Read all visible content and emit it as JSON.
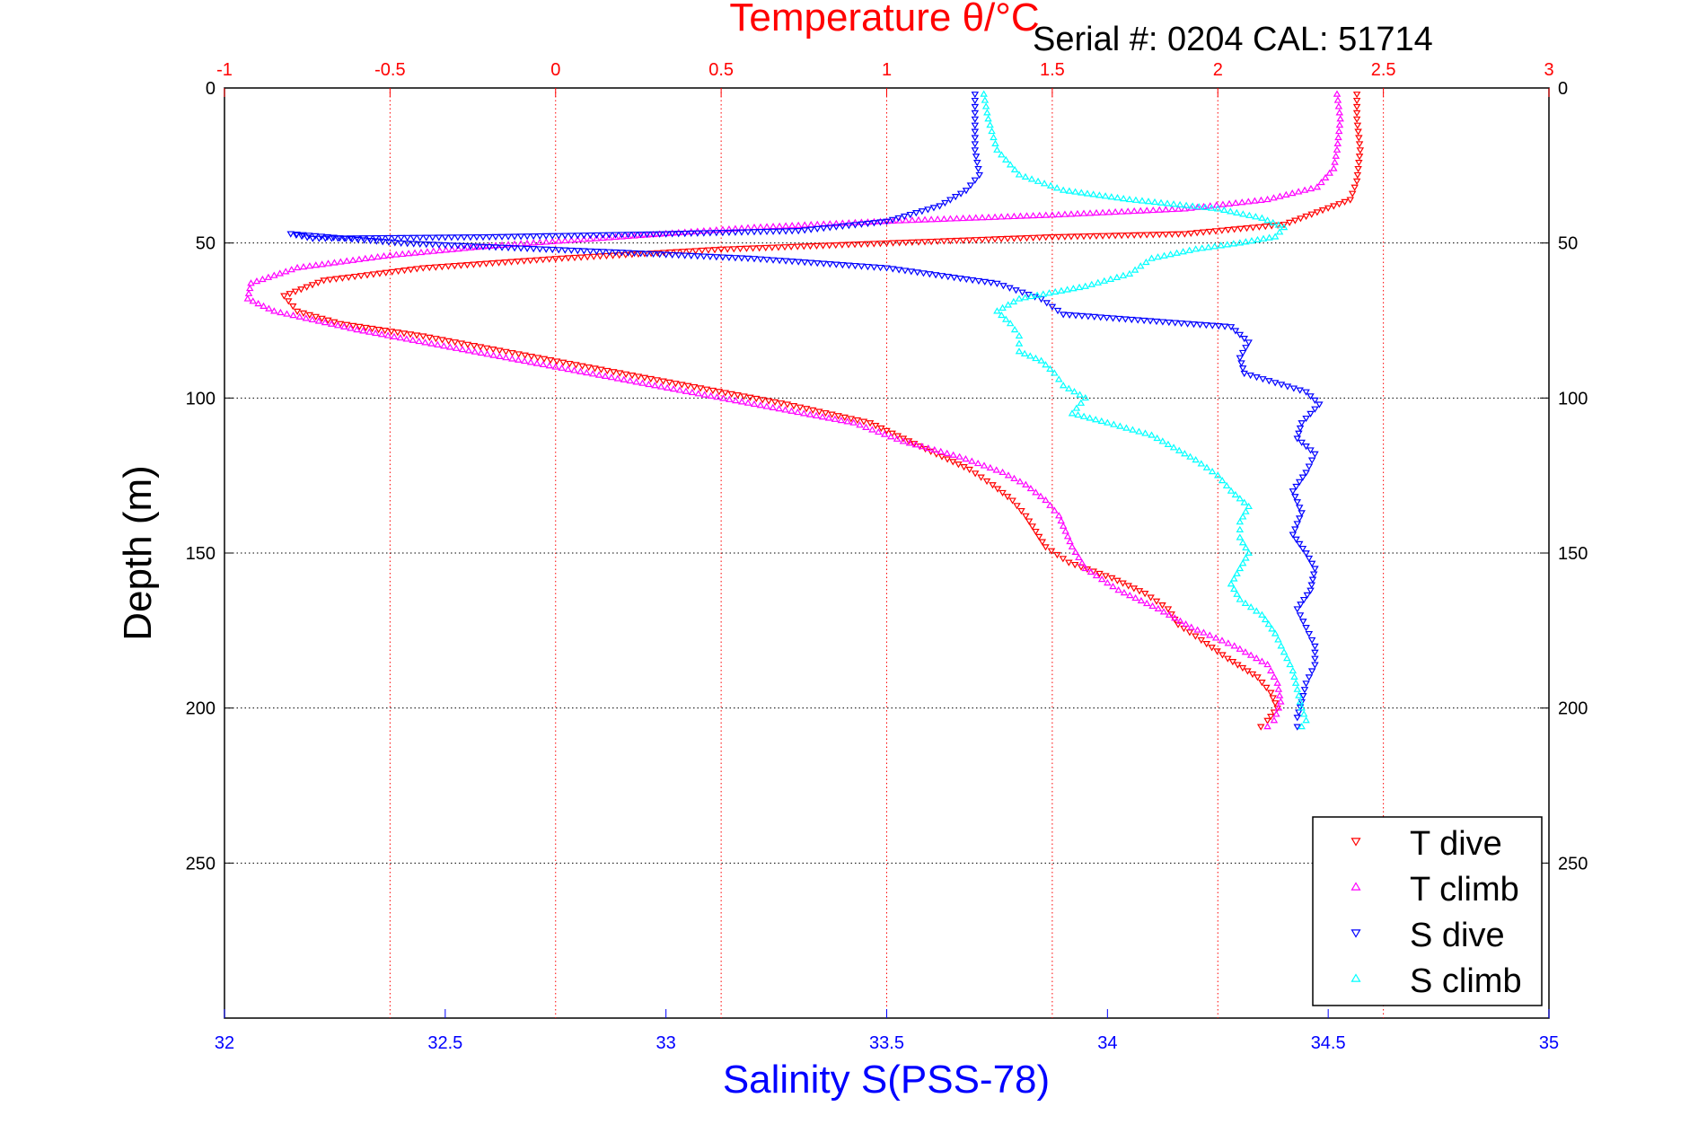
{
  "chart_data": {
    "type": "scatter",
    "title": "Temperature θ/°C",
    "annotation": "Serial #: 0204  CAL: 51714",
    "xlabel": "Salinity S(PSS-78)",
    "ylabel": "Depth (m)",
    "temperature_axis": {
      "label": "Temperature θ/°C",
      "range": [
        -1,
        3
      ],
      "ticks": [
        "-1",
        "-0.5",
        "0",
        "0.5",
        "1",
        "1.5",
        "2",
        "2.5",
        "3"
      ]
    },
    "salinity_axis": {
      "label": "Salinity S(PSS-78)",
      "range": [
        32,
        35
      ],
      "ticks": [
        "32",
        "32.5",
        "33",
        "33.5",
        "34",
        "34.5",
        "35"
      ]
    },
    "depth_axis": {
      "label": "Depth (m)",
      "range": [
        0,
        300
      ],
      "inverted": true,
      "ticks": [
        "0",
        "50",
        "100",
        "150",
        "200",
        "250"
      ]
    },
    "grid": true,
    "legend_position": "bottom-right",
    "colors": {
      "temperature": "#ff0000",
      "salinity": "#0000ff",
      "depth": "#000000",
      "t_dive": "#ff0000",
      "t_climb": "#ff00ff",
      "s_dive": "#0000ff",
      "s_climb": "#00ffff"
    },
    "series": [
      {
        "name": "T dive",
        "axis": "temperature",
        "marker": "triangle-down",
        "color": "#ff0000",
        "points": [
          [
            2.42,
            2
          ],
          [
            2.42,
            10
          ],
          [
            2.43,
            20
          ],
          [
            2.42,
            30
          ],
          [
            2.4,
            36
          ],
          [
            2.3,
            40
          ],
          [
            2.2,
            44
          ],
          [
            1.9,
            47
          ],
          [
            1.5,
            48
          ],
          [
            1.0,
            50
          ],
          [
            0.5,
            52
          ],
          [
            0.0,
            55
          ],
          [
            -0.4,
            58
          ],
          [
            -0.7,
            62
          ],
          [
            -0.82,
            67
          ],
          [
            -0.78,
            72
          ],
          [
            -0.65,
            76
          ],
          [
            -0.4,
            80
          ],
          [
            -0.15,
            85
          ],
          [
            0.1,
            90
          ],
          [
            0.4,
            96
          ],
          [
            0.7,
            102
          ],
          [
            0.95,
            108
          ],
          [
            1.05,
            113
          ],
          [
            1.15,
            118
          ],
          [
            1.25,
            123
          ],
          [
            1.32,
            128
          ],
          [
            1.38,
            133
          ],
          [
            1.42,
            138
          ],
          [
            1.45,
            143
          ],
          [
            1.48,
            148
          ],
          [
            1.55,
            153
          ],
          [
            1.68,
            158
          ],
          [
            1.78,
            163
          ],
          [
            1.85,
            168
          ],
          [
            1.88,
            173
          ],
          [
            1.95,
            178
          ],
          [
            2.03,
            184
          ],
          [
            2.12,
            190
          ],
          [
            2.16,
            195
          ],
          [
            2.18,
            200
          ],
          [
            2.15,
            204
          ],
          [
            2.13,
            206
          ]
        ]
      },
      {
        "name": "T climb",
        "axis": "temperature",
        "marker": "triangle-up",
        "color": "#ff00ff",
        "points": [
          [
            2.36,
            2
          ],
          [
            2.37,
            10
          ],
          [
            2.36,
            20
          ],
          [
            2.35,
            26
          ],
          [
            2.3,
            32
          ],
          [
            2.15,
            36
          ],
          [
            1.9,
            39
          ],
          [
            1.5,
            41
          ],
          [
            1.0,
            43
          ],
          [
            0.6,
            45
          ],
          [
            0.2,
            48
          ],
          [
            -0.2,
            51
          ],
          [
            -0.5,
            54
          ],
          [
            -0.78,
            58
          ],
          [
            -0.92,
            63
          ],
          [
            -0.93,
            68
          ],
          [
            -0.85,
            72
          ],
          [
            -0.6,
            78
          ],
          [
            -0.3,
            84
          ],
          [
            0.0,
            90
          ],
          [
            0.3,
            96
          ],
          [
            0.6,
            102
          ],
          [
            0.9,
            108
          ],
          [
            1.05,
            114
          ],
          [
            1.22,
            119
          ],
          [
            1.35,
            124
          ],
          [
            1.42,
            128
          ],
          [
            1.48,
            133
          ],
          [
            1.52,
            138
          ],
          [
            1.54,
            143
          ],
          [
            1.56,
            148
          ],
          [
            1.6,
            155
          ],
          [
            1.7,
            162
          ],
          [
            1.82,
            168
          ],
          [
            1.92,
            174
          ],
          [
            2.05,
            180
          ],
          [
            2.15,
            186
          ],
          [
            2.18,
            192
          ],
          [
            2.19,
            198
          ],
          [
            2.17,
            204
          ],
          [
            2.15,
            206
          ]
        ]
      },
      {
        "name": "S dive",
        "axis": "salinity",
        "marker": "triangle-down",
        "color": "#0000ff",
        "points": [
          [
            33.7,
            2
          ],
          [
            33.7,
            10
          ],
          [
            33.7,
            20
          ],
          [
            33.71,
            28
          ],
          [
            33.68,
            33
          ],
          [
            33.62,
            38
          ],
          [
            33.5,
            43
          ],
          [
            33.3,
            46
          ],
          [
            33.0,
            47
          ],
          [
            32.6,
            48
          ],
          [
            32.2,
            48.5
          ],
          [
            32.15,
            47
          ],
          [
            32.4,
            50
          ],
          [
            32.9,
            53
          ],
          [
            33.2,
            55
          ],
          [
            33.5,
            58
          ],
          [
            33.75,
            63
          ],
          [
            33.85,
            68
          ],
          [
            33.9,
            73
          ],
          [
            34.28,
            77
          ],
          [
            34.32,
            82
          ],
          [
            34.3,
            87
          ],
          [
            34.31,
            92
          ],
          [
            34.45,
            98
          ],
          [
            34.48,
            102
          ],
          [
            34.44,
            108
          ],
          [
            34.43,
            113
          ],
          [
            34.47,
            118
          ],
          [
            34.45,
            124
          ],
          [
            34.42,
            130
          ],
          [
            34.44,
            137
          ],
          [
            34.42,
            144
          ],
          [
            34.45,
            150
          ],
          [
            34.47,
            155
          ],
          [
            34.46,
            162
          ],
          [
            34.43,
            168
          ],
          [
            34.45,
            174
          ],
          [
            34.47,
            180
          ],
          [
            34.47,
            186
          ],
          [
            34.45,
            192
          ],
          [
            34.44,
            198
          ],
          [
            34.43,
            203
          ],
          [
            34.43,
            206
          ]
        ]
      },
      {
        "name": "S climb",
        "axis": "salinity",
        "marker": "triangle-up",
        "color": "#00ffff",
        "points": [
          [
            33.72,
            2
          ],
          [
            33.73,
            10
          ],
          [
            33.75,
            20
          ],
          [
            33.8,
            28
          ],
          [
            33.9,
            33
          ],
          [
            34.05,
            36
          ],
          [
            34.25,
            39
          ],
          [
            34.35,
            42
          ],
          [
            34.4,
            45
          ],
          [
            34.38,
            48
          ],
          [
            34.3,
            50
          ],
          [
            34.2,
            52
          ],
          [
            34.1,
            55
          ],
          [
            34.05,
            60
          ],
          [
            33.95,
            64
          ],
          [
            33.8,
            68
          ],
          [
            33.75,
            72
          ],
          [
            33.78,
            76
          ],
          [
            33.8,
            80
          ],
          [
            33.8,
            85
          ],
          [
            33.85,
            88
          ],
          [
            33.88,
            92
          ],
          [
            33.9,
            96
          ],
          [
            33.95,
            100
          ],
          [
            33.92,
            105
          ],
          [
            34.0,
            108
          ],
          [
            34.1,
            112
          ],
          [
            34.15,
            116
          ],
          [
            34.2,
            120
          ],
          [
            34.25,
            125
          ],
          [
            34.28,
            130
          ],
          [
            34.32,
            135
          ],
          [
            34.3,
            140
          ],
          [
            34.3,
            145
          ],
          [
            34.32,
            150
          ],
          [
            34.3,
            155
          ],
          [
            34.28,
            160
          ],
          [
            34.3,
            165
          ],
          [
            34.35,
            170
          ],
          [
            34.38,
            176
          ],
          [
            34.4,
            182
          ],
          [
            34.42,
            188
          ],
          [
            34.43,
            194
          ],
          [
            34.44,
            200
          ],
          [
            34.45,
            204
          ],
          [
            34.44,
            206
          ]
        ]
      }
    ]
  },
  "legend": {
    "items": [
      {
        "label": "T dive",
        "marker": "triangle-down",
        "color": "#ff0000"
      },
      {
        "label": "T climb",
        "marker": "triangle-up",
        "color": "#ff00ff"
      },
      {
        "label": "S dive",
        "marker": "triangle-down",
        "color": "#0000ff"
      },
      {
        "label": "S climb",
        "marker": "triangle-up",
        "color": "#00ffff"
      }
    ]
  }
}
